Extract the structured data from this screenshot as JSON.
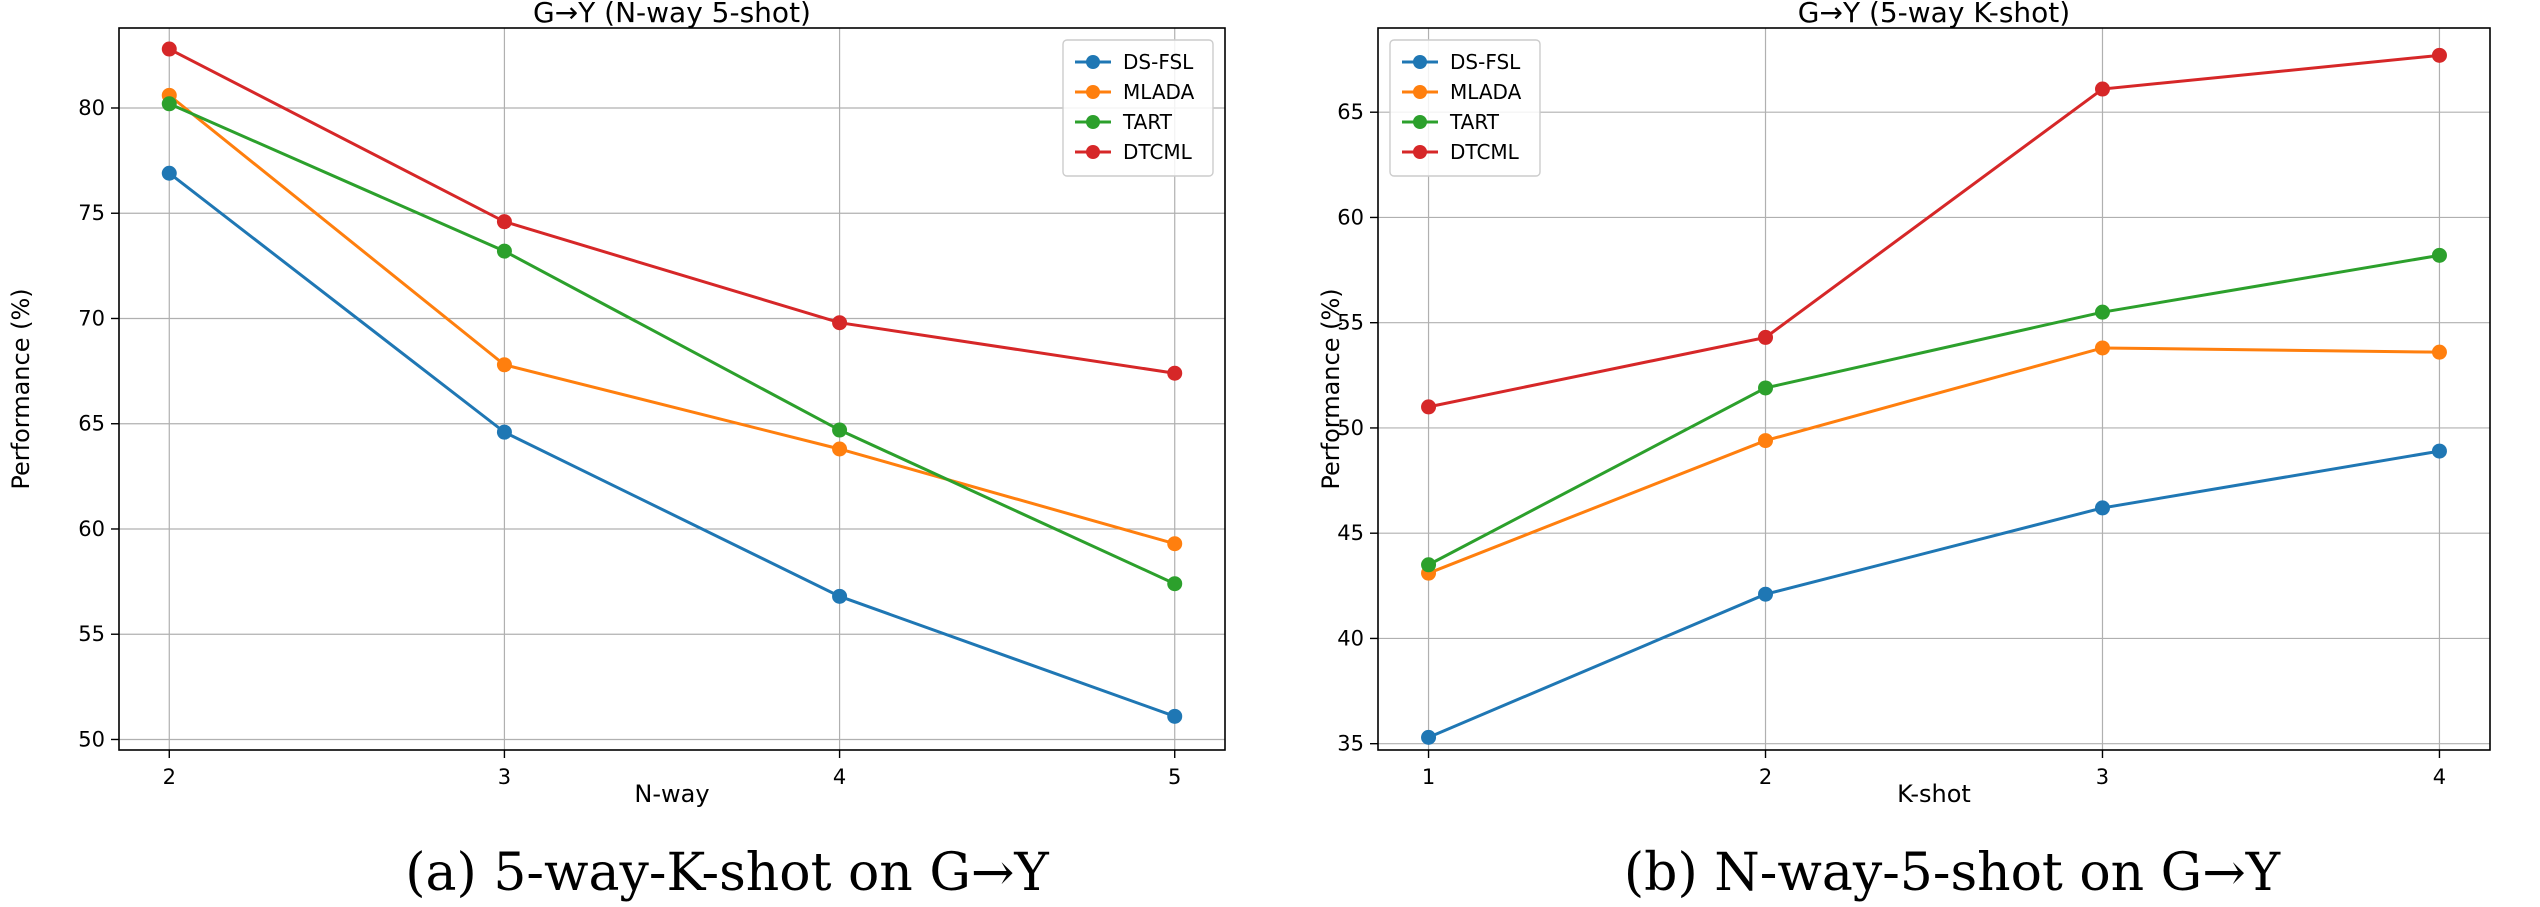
{
  "colors": {
    "DS-FSL": "#1f77b4",
    "MLADA": "#ff7f0e",
    "TART": "#2ca02c",
    "DTCML": "#d62728"
  },
  "chart_data": [
    {
      "type": "line",
      "title": "G→Y (N-way 5-shot)",
      "xlabel": "N-way",
      "ylabel": "Performance (%)",
      "caption": "(a) 5-way-K-shot on G→Y",
      "x": [
        2,
        3,
        4,
        5
      ],
      "xticks": [
        "2",
        "3",
        "4",
        "5"
      ],
      "yticks": [
        "50",
        "55",
        "60",
        "65",
        "70",
        "75",
        "80"
      ],
      "ytick_values": [
        50,
        55,
        60,
        65,
        70,
        75,
        80
      ],
      "xlim": [
        1.85,
        5.15
      ],
      "ylim": [
        49.5,
        83.8
      ],
      "grid": true,
      "legend_position": "top-right",
      "series": [
        {
          "name": "DS-FSL",
          "values": [
            76.9,
            64.6,
            56.8,
            51.1
          ]
        },
        {
          "name": "MLADA",
          "values": [
            80.6,
            67.8,
            63.8,
            59.3
          ]
        },
        {
          "name": "TART",
          "values": [
            80.2,
            73.2,
            64.7,
            57.4
          ]
        },
        {
          "name": "DTCML",
          "values": [
            82.8,
            74.6,
            69.8,
            67.4
          ]
        }
      ]
    },
    {
      "type": "line",
      "title": "G→Y (5-way K-shot)",
      "xlabel": "K-shot",
      "ylabel": "Performance (%)",
      "caption": "(b) N-way-5-shot on G→Y",
      "x": [
        1,
        2,
        3,
        4
      ],
      "xticks": [
        "1",
        "2",
        "3",
        "4"
      ],
      "yticks": [
        "35",
        "40",
        "45",
        "50",
        "55",
        "60",
        "65"
      ],
      "ytick_values": [
        35,
        40,
        45,
        50,
        55,
        60,
        65
      ],
      "xlim": [
        0.85,
        4.15
      ],
      "ylim": [
        34.7,
        69.0
      ],
      "grid": true,
      "legend_position": "top-left",
      "series": [
        {
          "name": "DS-FSL",
          "values": [
            35.3,
            42.1,
            46.2,
            48.9
          ]
        },
        {
          "name": "MLADA",
          "values": [
            43.1,
            49.4,
            53.8,
            53.6
          ]
        },
        {
          "name": "TART",
          "values": [
            43.5,
            51.9,
            55.5,
            58.2
          ]
        },
        {
          "name": "DTCML",
          "values": [
            51.0,
            54.3,
            66.1,
            67.7
          ]
        }
      ]
    }
  ]
}
